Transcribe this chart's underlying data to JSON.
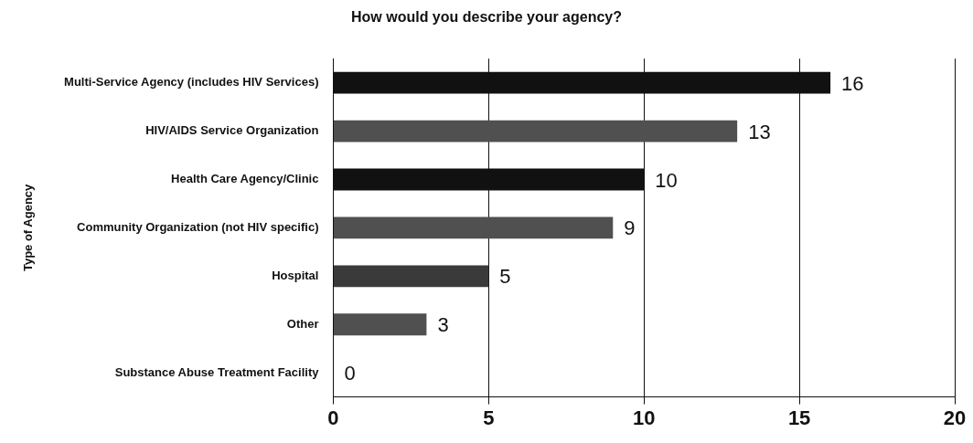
{
  "chart_data": {
    "type": "bar",
    "orientation": "horizontal",
    "title": "How would you describe your agency?",
    "ylabel": "Type of Agency",
    "categories": [
      "Multi-Service Agency (includes HIV Services)",
      "HIV/AIDS Service Organization",
      "Health Care Agency/Clinic",
      "Community Organization (not HIV specific)",
      "Hospital",
      "Other",
      "Substance Abuse Treatment Facility"
    ],
    "values": [
      16,
      13,
      10,
      9,
      5,
      3,
      0
    ],
    "colors": [
      "#111111",
      "#505050",
      "#111111",
      "#505050",
      "#3a3a3a",
      "#505050",
      "#505050"
    ],
    "xlim": [
      0,
      20
    ],
    "xticks": [
      0,
      5,
      10,
      15,
      20
    ],
    "grid": "x",
    "data_labels": true,
    "legend": false
  }
}
